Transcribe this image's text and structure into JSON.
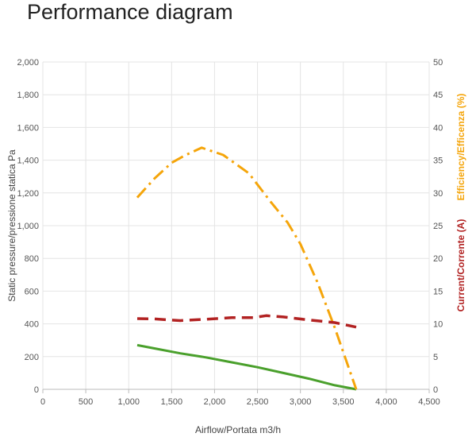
{
  "page": {
    "title": "Performance diagram"
  },
  "chart_data": {
    "type": "line",
    "title": "Performance diagram",
    "xlabel": "Airflow/Portata m3/h",
    "ylabel_left": "Static pressure/pressione statica Pa",
    "ylabel_right_1": "Efficiency/Efficenza (%)",
    "ylabel_right_2": "Current/Corrente (A)",
    "xlim": [
      0,
      4500
    ],
    "ylim_left": [
      0,
      2000
    ],
    "ylim_right": [
      0,
      50
    ],
    "grid": true,
    "x_ticks": [
      "0",
      "500",
      "1,000",
      "1,500",
      "2,000",
      "2,500",
      "3,000",
      "3,500",
      "4,000",
      "4,500"
    ],
    "y_left_ticks": [
      "0",
      "200",
      "400",
      "600",
      "800",
      "1,000",
      "1,200",
      "1,400",
      "1,600",
      "1,800",
      "2,000"
    ],
    "y_right_ticks": [
      "0",
      "5",
      "10",
      "15",
      "20",
      "25",
      "30",
      "35",
      "40",
      "45",
      "50"
    ],
    "colors": {
      "pressure": "#4aa02c",
      "efficiency": "#f5a50a",
      "current": "#b22222"
    },
    "series": [
      {
        "key": "pressure",
        "axis": "left",
        "style": "solid",
        "x": [
          1100,
          1300,
          1600,
          1900,
          2200,
          2500,
          2800,
          3100,
          3400,
          3650
        ],
        "y": [
          270,
          250,
          220,
          195,
          165,
          135,
          100,
          65,
          25,
          0
        ]
      },
      {
        "key": "efficiency",
        "axis": "right",
        "style": "dashdot",
        "x": [
          1100,
          1300,
          1500,
          1650,
          1850,
          2100,
          2400,
          2650,
          2850,
          3000,
          3200,
          3400,
          3650
        ],
        "y": [
          29.3,
          32.2,
          34.6,
          35.7,
          36.9,
          35.8,
          33,
          28.7,
          25.5,
          22.2,
          16.3,
          9.4,
          0
        ]
      },
      {
        "key": "current",
        "axis": "right",
        "style": "dashed",
        "x": [
          1100,
          1300,
          1600,
          1900,
          2200,
          2450,
          2600,
          2800,
          3100,
          3400,
          3650
        ],
        "y": [
          10.8,
          10.75,
          10.5,
          10.7,
          10.95,
          10.95,
          11.25,
          11.05,
          10.6,
          10.2,
          9.5
        ]
      }
    ]
  }
}
